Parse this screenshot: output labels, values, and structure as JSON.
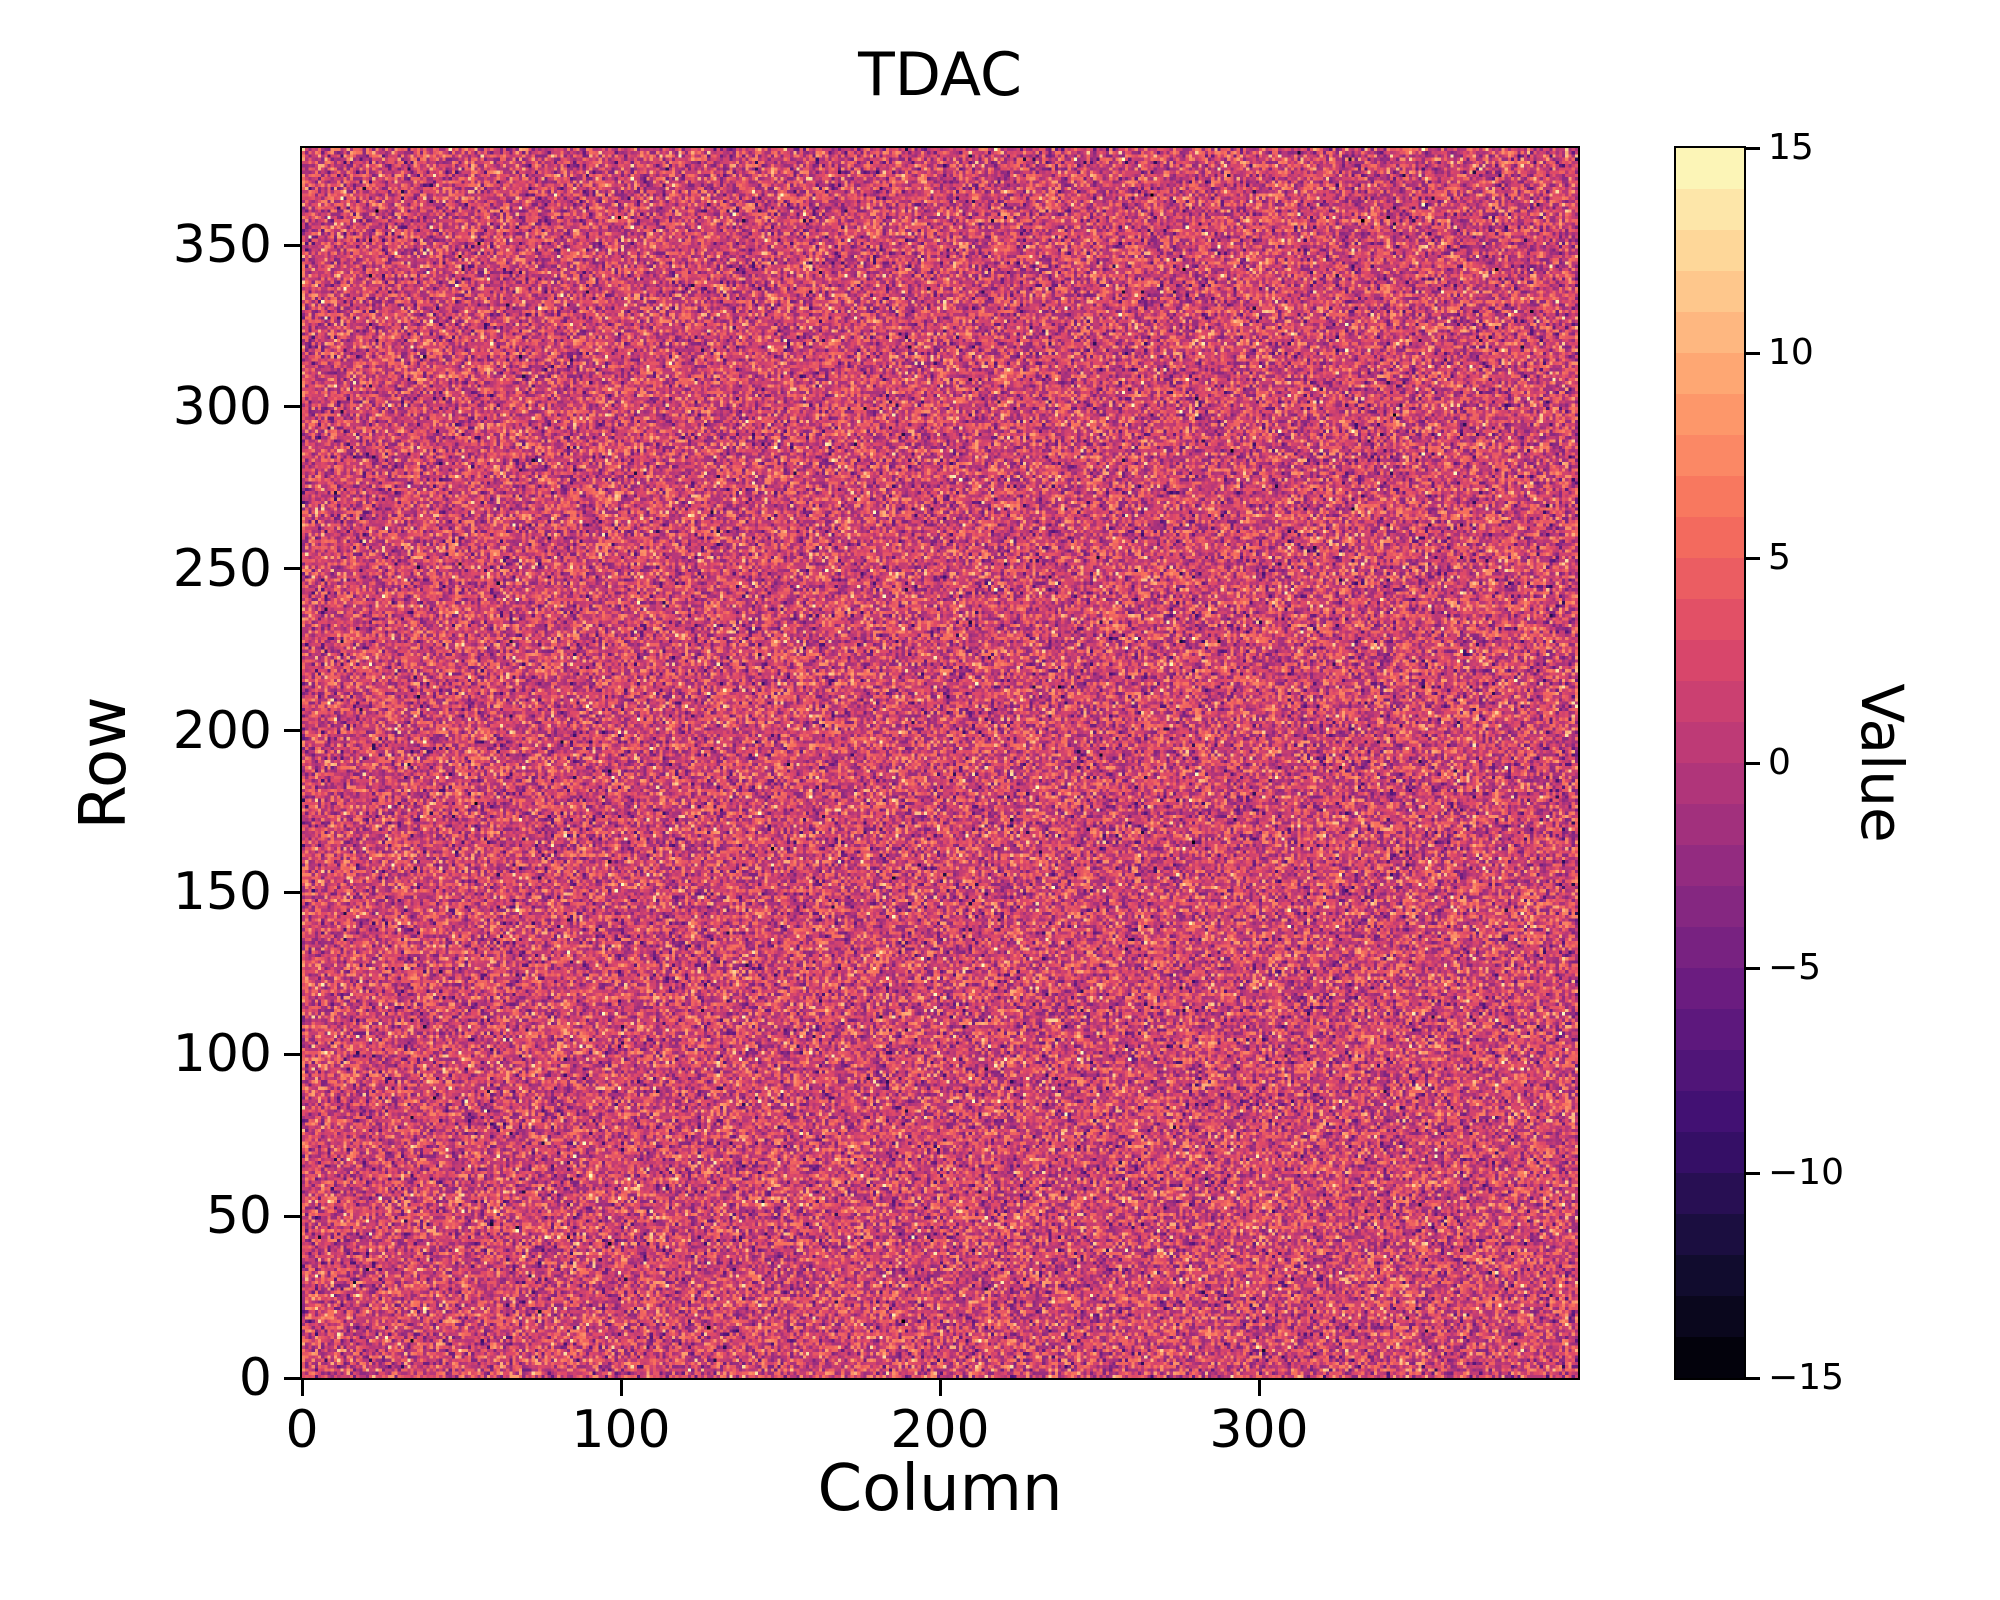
{
  "chart_data": {
    "type": "heatmap",
    "title": "TDAC",
    "xlabel": "Column",
    "ylabel": "Row",
    "x_range": [
      0,
      400
    ],
    "y_range": [
      0,
      380
    ],
    "x_ticks": [
      0,
      100,
      200,
      300
    ],
    "y_ticks": [
      0,
      50,
      100,
      150,
      200,
      250,
      300,
      350
    ],
    "grid": false,
    "colorbar": {
      "label": "Value",
      "vmin": -15,
      "vmax": 15,
      "ticks": [
        15,
        10,
        5,
        0,
        -5,
        -10,
        -15
      ],
      "tick_labels": [
        "15",
        "10",
        "5",
        "0",
        "−5",
        "−10",
        "−15"
      ],
      "colormap": "magma",
      "n_bins": 30,
      "position": "right"
    },
    "data": {
      "rows": 380,
      "cols": 400,
      "description": "Per-pixel TDAC trim values; integer gaussian-like random noise clipped to [-15, 15], no visible spatial structure",
      "mean": 2,
      "std": 4,
      "value_type": "integer",
      "seed": 7
    },
    "colors": {
      "background": "#ffffff",
      "text": "#000000",
      "spine": "#000000",
      "dominant_cell": "#c04078"
    }
  }
}
